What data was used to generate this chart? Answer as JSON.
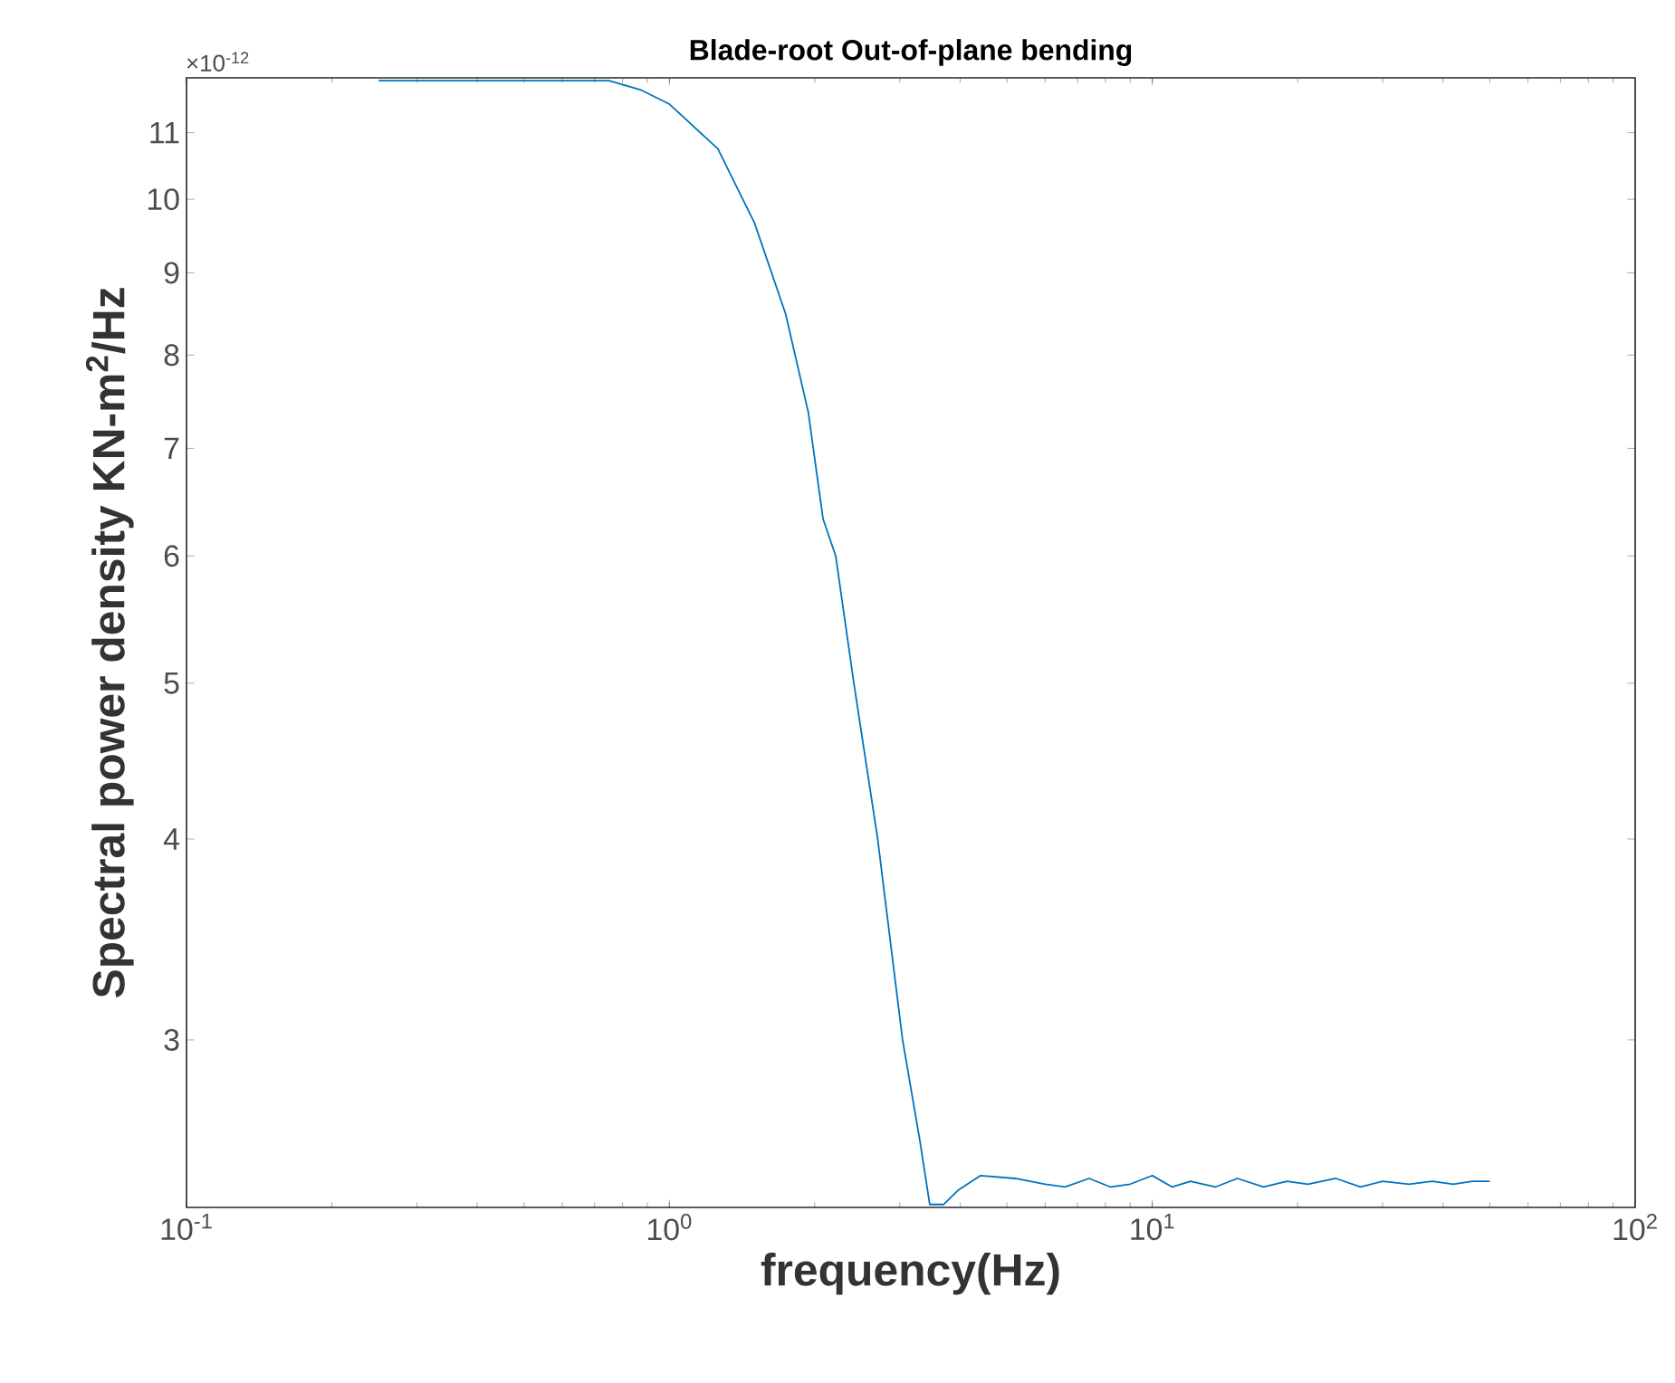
{
  "chart_data": {
    "type": "line",
    "title": "Blade-root Out-of-plane bending",
    "xlabel": "frequency(Hz)",
    "ylabel": "Spectral power density KN-m$^{2}$/Hz",
    "annotations": [
      "×10$^{-12}$"
    ],
    "log": "xy",
    "grid": false,
    "legend": false,
    "marker": "none",
    "line_style": "solid",
    "xlim": [
      0.1,
      100
    ],
    "ylim": [
      2.36,
      11.9
    ],
    "xticks": [
      {
        "value": 0.1,
        "label": "10$^{-1}$"
      },
      {
        "value": 1,
        "label": "10$^{0}$"
      },
      {
        "value": 10,
        "label": "10$^{1}$"
      },
      {
        "value": 100,
        "label": "10$^{2}$"
      }
    ],
    "yticks": [
      3,
      4,
      5,
      6,
      7,
      8,
      9,
      10,
      11
    ],
    "series": [
      {
        "color": "#0072bd",
        "x": [
          0.25,
          0.4,
          0.6,
          0.75,
          0.87,
          1.0,
          1.26,
          1.5,
          1.74,
          1.94,
          2.08,
          2.21,
          2.41,
          2.7,
          3.04,
          3.3,
          3.46,
          3.7,
          3.97,
          4.41,
          5.2,
          6.0,
          6.6,
          7.4,
          8.2,
          9.0,
          10.0,
          11.0,
          12.0,
          13.5,
          15,
          17,
          19,
          21,
          24,
          27,
          30,
          34,
          38,
          42,
          46,
          50
        ],
        "values": [
          11.85,
          11.85,
          11.85,
          11.85,
          11.7,
          11.46,
          10.75,
          9.67,
          8.49,
          7.37,
          6.33,
          6.0,
          5.0,
          4.0,
          3.0,
          2.6,
          2.37,
          2.37,
          2.42,
          2.47,
          2.46,
          2.44,
          2.43,
          2.46,
          2.43,
          2.44,
          2.47,
          2.43,
          2.45,
          2.43,
          2.46,
          2.43,
          2.45,
          2.44,
          2.46,
          2.43,
          2.45,
          2.44,
          2.45,
          2.44,
          2.45,
          2.45
        ]
      }
    ]
  }
}
